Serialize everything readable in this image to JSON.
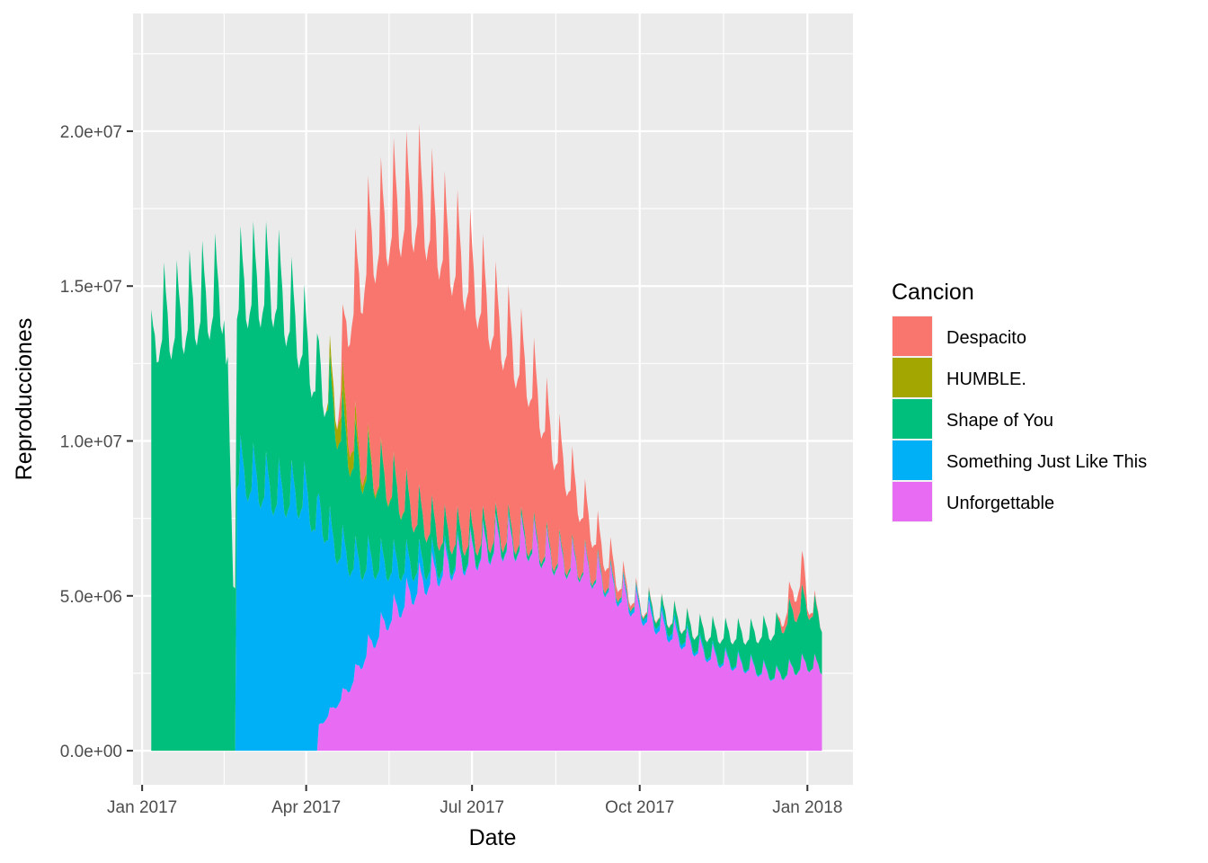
{
  "chart_data": {
    "type": "area",
    "stacked": true,
    "title": "",
    "xlabel": "Date",
    "ylabel": "Reproducciones",
    "xlim": [
      "2016-12-27",
      "2018-01-26"
    ],
    "ylim": [
      -1100000,
      23800000
    ],
    "x_ticks": [
      {
        "date": "2017-01-01",
        "label": "Jan 2017"
      },
      {
        "date": "2017-04-01",
        "label": "Apr 2017"
      },
      {
        "date": "2017-07-01",
        "label": "Jul 2017"
      },
      {
        "date": "2017-10-01",
        "label": "Oct 2017"
      },
      {
        "date": "2018-01-01",
        "label": "Jan 2018"
      }
    ],
    "y_ticks": [
      {
        "value": 0,
        "label": "0.0e+00"
      },
      {
        "value": 5000000,
        "label": "5.0e+06"
      },
      {
        "value": 10000000,
        "label": "1.0e+07"
      },
      {
        "value": 15000000,
        "label": "1.5e+07"
      },
      {
        "value": 20000000,
        "label": "2.0e+07"
      }
    ],
    "grid": true,
    "legend": {
      "title": "Cancion",
      "position": "right"
    },
    "weekly_pattern": "values peak on Fridays with a dip mid-week; points below are approximate weekly-average levels read off the chart",
    "series": [
      {
        "name": "Despacito",
        "color": "#F8766D",
        "points": [
          [
            "2017-04-18",
            0
          ],
          [
            "2017-04-19",
            300000
          ],
          [
            "2017-04-25",
            4000000
          ],
          [
            "2017-05-05",
            7000000
          ],
          [
            "2017-05-20",
            9000000
          ],
          [
            "2017-06-02",
            10200000
          ],
          [
            "2017-06-15",
            9500000
          ],
          [
            "2017-07-01",
            8400000
          ],
          [
            "2017-07-15",
            6700000
          ],
          [
            "2017-08-01",
            5300000
          ],
          [
            "2017-08-15",
            3600000
          ],
          [
            "2017-09-01",
            1700000
          ],
          [
            "2017-09-10",
            900000
          ],
          [
            "2017-09-20",
            300000
          ],
          [
            "2017-10-01",
            60000
          ],
          [
            "2017-10-15",
            20000
          ],
          [
            "2017-11-01",
            10000
          ],
          [
            "2017-12-15",
            0
          ],
          [
            "2017-12-30",
            1000000
          ],
          [
            "2018-01-01",
            200000
          ],
          [
            "2018-01-09",
            0
          ]
        ]
      },
      {
        "name": "HUMBLE.",
        "color": "#A3A500",
        "points": [
          [
            "2017-04-12",
            0
          ],
          [
            "2017-04-14",
            500000
          ],
          [
            "2017-04-22",
            900000
          ],
          [
            "2017-05-01",
            300000
          ],
          [
            "2017-05-10",
            80000
          ],
          [
            "2017-06-01",
            0
          ]
        ]
      },
      {
        "name": "Shape of You",
        "color": "#00BF7D",
        "points": [
          [
            "2017-01-06",
            12500000
          ],
          [
            "2017-01-10",
            13800000
          ],
          [
            "2017-01-20",
            13900000
          ],
          [
            "2017-02-01",
            14400000
          ],
          [
            "2017-02-15",
            14800000
          ],
          [
            "2017-02-20",
            5700000
          ],
          [
            "2017-03-01",
            6200000
          ],
          [
            "2017-03-15",
            6700000
          ],
          [
            "2017-04-01",
            4900000
          ],
          [
            "2017-04-15",
            4300000
          ],
          [
            "2017-05-01",
            3100000
          ],
          [
            "2017-05-15",
            2700000
          ],
          [
            "2017-06-01",
            1600000
          ],
          [
            "2017-06-15",
            900000
          ],
          [
            "2017-07-01",
            500000
          ],
          [
            "2017-07-15",
            300000
          ],
          [
            "2017-08-01",
            150000
          ],
          [
            "2017-09-01",
            80000
          ],
          [
            "2017-10-01",
            60000
          ],
          [
            "2017-10-15",
            300000
          ],
          [
            "2017-11-01",
            500000
          ],
          [
            "2017-11-15",
            800000
          ],
          [
            "2017-12-01",
            1000000
          ],
          [
            "2017-12-15",
            1500000
          ],
          [
            "2017-12-30",
            2000000
          ],
          [
            "2018-01-09",
            1500000
          ]
        ]
      },
      {
        "name": "Something Just Like This",
        "color": "#00B0F6",
        "points": [
          [
            "2017-02-21",
            0
          ],
          [
            "2017-02-22",
            9000000
          ],
          [
            "2017-03-01",
            8800000
          ],
          [
            "2017-03-15",
            8300000
          ],
          [
            "2017-04-01",
            8200000
          ],
          [
            "2017-04-05",
            7600000
          ],
          [
            "2017-04-15",
            5500000
          ],
          [
            "2017-05-01",
            3200000
          ],
          [
            "2017-05-15",
            1800000
          ],
          [
            "2017-06-01",
            700000
          ],
          [
            "2017-06-15",
            200000
          ],
          [
            "2017-07-01",
            80000
          ],
          [
            "2017-08-01",
            30000
          ],
          [
            "2017-09-01",
            20000
          ],
          [
            "2017-10-01",
            150000
          ],
          [
            "2017-10-15",
            200000
          ],
          [
            "2017-11-01",
            100000
          ],
          [
            "2017-12-01",
            50000
          ],
          [
            "2018-01-09",
            0
          ]
        ]
      },
      {
        "name": "Unforgettable",
        "color": "#E76BF3",
        "points": [
          [
            "2017-04-07",
            0
          ],
          [
            "2017-04-08",
            800000
          ],
          [
            "2017-04-15",
            1300000
          ],
          [
            "2017-04-25",
            2100000
          ],
          [
            "2017-05-05",
            3300000
          ],
          [
            "2017-05-15",
            4200000
          ],
          [
            "2017-06-01",
            5300000
          ],
          [
            "2017-06-15",
            5900000
          ],
          [
            "2017-07-01",
            6300000
          ],
          [
            "2017-07-15",
            6700000
          ],
          [
            "2017-08-01",
            6700000
          ],
          [
            "2017-08-15",
            6200000
          ],
          [
            "2017-09-01",
            5900000
          ],
          [
            "2017-09-15",
            5300000
          ],
          [
            "2017-10-01",
            4500000
          ],
          [
            "2017-10-15",
            3900000
          ],
          [
            "2017-11-01",
            3300000
          ],
          [
            "2017-11-15",
            2900000
          ],
          [
            "2017-12-01",
            2700000
          ],
          [
            "2017-12-15",
            2400000
          ],
          [
            "2017-12-31",
            2800000
          ],
          [
            "2018-01-09",
            2700000
          ]
        ]
      }
    ]
  }
}
